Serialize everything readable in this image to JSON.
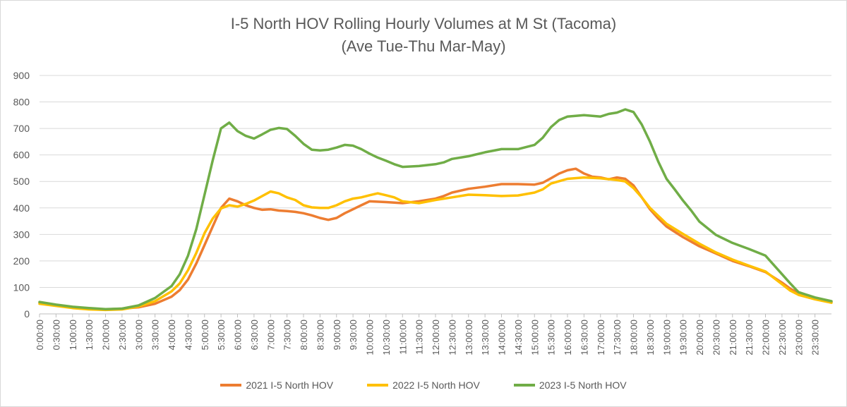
{
  "chart_data": {
    "type": "line",
    "title": "I-5 North HOV Rolling Hourly Volumes at M St (Tacoma)",
    "subtitle": "(Ave Tue-Thu Mar-May)",
    "ylim": [
      0,
      900
    ],
    "yticks": [
      0,
      100,
      200,
      300,
      400,
      500,
      600,
      700,
      800,
      900
    ],
    "xlim": [
      0,
      24
    ],
    "x_tick_labels": [
      "0:00:00",
      "0:30:00",
      "1:00:00",
      "1:30:00",
      "2:00:00",
      "2:30:00",
      "3:00:00",
      "3:30:00",
      "4:00:00",
      "4:30:00",
      "5:00:00",
      "5:30:00",
      "6:00:00",
      "6:30:00",
      "7:00:00",
      "7:30:00",
      "8:00:00",
      "8:30:00",
      "9:00:00",
      "9:30:00",
      "10:00:00",
      "10:30:00",
      "11:00:00",
      "11:30:00",
      "12:00:00",
      "12:30:00",
      "13:00:00",
      "13:30:00",
      "14:00:00",
      "14:30:00",
      "15:00:00",
      "15:30:00",
      "16:00:00",
      "16:30:00",
      "17:00:00",
      "17:30:00",
      "18:00:00",
      "18:30:00",
      "19:00:00",
      "19:30:00",
      "20:00:00",
      "20:30:00",
      "21:00:00",
      "21:30:00",
      "22:00:00",
      "22:30:00",
      "23:00:00",
      "23:30:00"
    ],
    "grid": true,
    "legend_position": "bottom",
    "series": [
      {
        "name": "2021 I-5 North HOV",
        "color": "#ED7D31",
        "points": [
          [
            0,
            42
          ],
          [
            0.5,
            32
          ],
          [
            1,
            25
          ],
          [
            1.5,
            20
          ],
          [
            2,
            17
          ],
          [
            2.5,
            20
          ],
          [
            3,
            25
          ],
          [
            3.5,
            38
          ],
          [
            4,
            65
          ],
          [
            4.25,
            90
          ],
          [
            4.5,
            130
          ],
          [
            4.75,
            190
          ],
          [
            5,
            260
          ],
          [
            5.25,
            330
          ],
          [
            5.5,
            400
          ],
          [
            5.75,
            435
          ],
          [
            6,
            425
          ],
          [
            6.25,
            410
          ],
          [
            6.5,
            400
          ],
          [
            6.75,
            393
          ],
          [
            7,
            395
          ],
          [
            7.25,
            390
          ],
          [
            7.5,
            388
          ],
          [
            7.75,
            385
          ],
          [
            8,
            380
          ],
          [
            8.25,
            372
          ],
          [
            8.5,
            362
          ],
          [
            8.75,
            355
          ],
          [
            9,
            362
          ],
          [
            9.25,
            380
          ],
          [
            9.5,
            395
          ],
          [
            9.75,
            410
          ],
          [
            10,
            425
          ],
          [
            10.5,
            422
          ],
          [
            11,
            418
          ],
          [
            11.5,
            425
          ],
          [
            12,
            435
          ],
          [
            12.25,
            445
          ],
          [
            12.5,
            458
          ],
          [
            13,
            472
          ],
          [
            13.5,
            480
          ],
          [
            14,
            490
          ],
          [
            14.5,
            490
          ],
          [
            15,
            488
          ],
          [
            15.25,
            495
          ],
          [
            15.5,
            512
          ],
          [
            15.75,
            530
          ],
          [
            16,
            542
          ],
          [
            16.25,
            548
          ],
          [
            16.5,
            530
          ],
          [
            16.75,
            518
          ],
          [
            17,
            515
          ],
          [
            17.25,
            508
          ],
          [
            17.5,
            515
          ],
          [
            17.75,
            510
          ],
          [
            18,
            485
          ],
          [
            18.25,
            440
          ],
          [
            18.5,
            395
          ],
          [
            18.75,
            360
          ],
          [
            19,
            330
          ],
          [
            19.25,
            310
          ],
          [
            19.5,
            290
          ],
          [
            20,
            255
          ],
          [
            20.5,
            228
          ],
          [
            21,
            200
          ],
          [
            21.5,
            180
          ],
          [
            22,
            158
          ],
          [
            22.5,
            118
          ],
          [
            22.75,
            95
          ],
          [
            23,
            78
          ],
          [
            23.5,
            58
          ],
          [
            24,
            45
          ]
        ]
      },
      {
        "name": "2022 I-5 North HOV",
        "color": "#FFC000",
        "points": [
          [
            0,
            38
          ],
          [
            0.5,
            30
          ],
          [
            1,
            22
          ],
          [
            1.5,
            17
          ],
          [
            2,
            15
          ],
          [
            2.5,
            17
          ],
          [
            3,
            28
          ],
          [
            3.5,
            48
          ],
          [
            4,
            85
          ],
          [
            4.25,
            115
          ],
          [
            4.5,
            165
          ],
          [
            4.75,
            230
          ],
          [
            5,
            305
          ],
          [
            5.25,
            360
          ],
          [
            5.5,
            398
          ],
          [
            5.75,
            410
          ],
          [
            6,
            405
          ],
          [
            6.25,
            415
          ],
          [
            6.5,
            428
          ],
          [
            6.75,
            445
          ],
          [
            7,
            462
          ],
          [
            7.25,
            455
          ],
          [
            7.5,
            440
          ],
          [
            7.75,
            430
          ],
          [
            8,
            410
          ],
          [
            8.25,
            402
          ],
          [
            8.5,
            400
          ],
          [
            8.75,
            400
          ],
          [
            9,
            410
          ],
          [
            9.25,
            425
          ],
          [
            9.5,
            435
          ],
          [
            9.75,
            440
          ],
          [
            10,
            448
          ],
          [
            10.25,
            455
          ],
          [
            10.5,
            448
          ],
          [
            10.75,
            440
          ],
          [
            11,
            425
          ],
          [
            11.5,
            418
          ],
          [
            12,
            430
          ],
          [
            12.5,
            440
          ],
          [
            13,
            450
          ],
          [
            13.5,
            448
          ],
          [
            14,
            445
          ],
          [
            14.5,
            447
          ],
          [
            15,
            458
          ],
          [
            15.25,
            470
          ],
          [
            15.5,
            492
          ],
          [
            16,
            510
          ],
          [
            16.5,
            515
          ],
          [
            17,
            512
          ],
          [
            17.5,
            505
          ],
          [
            17.75,
            500
          ],
          [
            18,
            475
          ],
          [
            18.25,
            440
          ],
          [
            18.5,
            400
          ],
          [
            18.75,
            370
          ],
          [
            19,
            340
          ],
          [
            19.5,
            302
          ],
          [
            20,
            265
          ],
          [
            20.5,
            232
          ],
          [
            21,
            205
          ],
          [
            21.5,
            182
          ],
          [
            22,
            160
          ],
          [
            22.5,
            112
          ],
          [
            22.75,
            88
          ],
          [
            23,
            72
          ],
          [
            23.5,
            55
          ],
          [
            24,
            42
          ]
        ]
      },
      {
        "name": "2023 I-5 North HOV",
        "color": "#70AD47",
        "points": [
          [
            0,
            45
          ],
          [
            0.5,
            35
          ],
          [
            1,
            27
          ],
          [
            1.5,
            22
          ],
          [
            2,
            18
          ],
          [
            2.5,
            20
          ],
          [
            3,
            32
          ],
          [
            3.5,
            60
          ],
          [
            4,
            105
          ],
          [
            4.25,
            150
          ],
          [
            4.5,
            220
          ],
          [
            4.75,
            320
          ],
          [
            5,
            450
          ],
          [
            5.25,
            580
          ],
          [
            5.5,
            700
          ],
          [
            5.75,
            722
          ],
          [
            6,
            690
          ],
          [
            6.25,
            672
          ],
          [
            6.5,
            662
          ],
          [
            6.75,
            678
          ],
          [
            7,
            695
          ],
          [
            7.25,
            702
          ],
          [
            7.5,
            698
          ],
          [
            7.75,
            672
          ],
          [
            8,
            642
          ],
          [
            8.25,
            620
          ],
          [
            8.5,
            617
          ],
          [
            8.75,
            620
          ],
          [
            9,
            628
          ],
          [
            9.25,
            638
          ],
          [
            9.5,
            635
          ],
          [
            9.75,
            622
          ],
          [
            10,
            605
          ],
          [
            10.25,
            590
          ],
          [
            10.5,
            578
          ],
          [
            10.75,
            565
          ],
          [
            11,
            555
          ],
          [
            11.5,
            558
          ],
          [
            12,
            565
          ],
          [
            12.25,
            572
          ],
          [
            12.5,
            585
          ],
          [
            13,
            595
          ],
          [
            13.5,
            610
          ],
          [
            14,
            622
          ],
          [
            14.5,
            622
          ],
          [
            15,
            638
          ],
          [
            15.25,
            665
          ],
          [
            15.5,
            705
          ],
          [
            15.75,
            732
          ],
          [
            16,
            745
          ],
          [
            16.5,
            750
          ],
          [
            17,
            745
          ],
          [
            17.25,
            755
          ],
          [
            17.5,
            760
          ],
          [
            17.75,
            772
          ],
          [
            18,
            762
          ],
          [
            18.25,
            715
          ],
          [
            18.5,
            650
          ],
          [
            18.75,
            575
          ],
          [
            19,
            510
          ],
          [
            19.25,
            470
          ],
          [
            19.5,
            428
          ],
          [
            19.75,
            390
          ],
          [
            20,
            348
          ],
          [
            20.5,
            298
          ],
          [
            21,
            268
          ],
          [
            21.5,
            245
          ],
          [
            22,
            220
          ],
          [
            22.5,
            150
          ],
          [
            22.75,
            115
          ],
          [
            23,
            82
          ],
          [
            23.5,
            62
          ],
          [
            24,
            48
          ]
        ]
      }
    ]
  }
}
